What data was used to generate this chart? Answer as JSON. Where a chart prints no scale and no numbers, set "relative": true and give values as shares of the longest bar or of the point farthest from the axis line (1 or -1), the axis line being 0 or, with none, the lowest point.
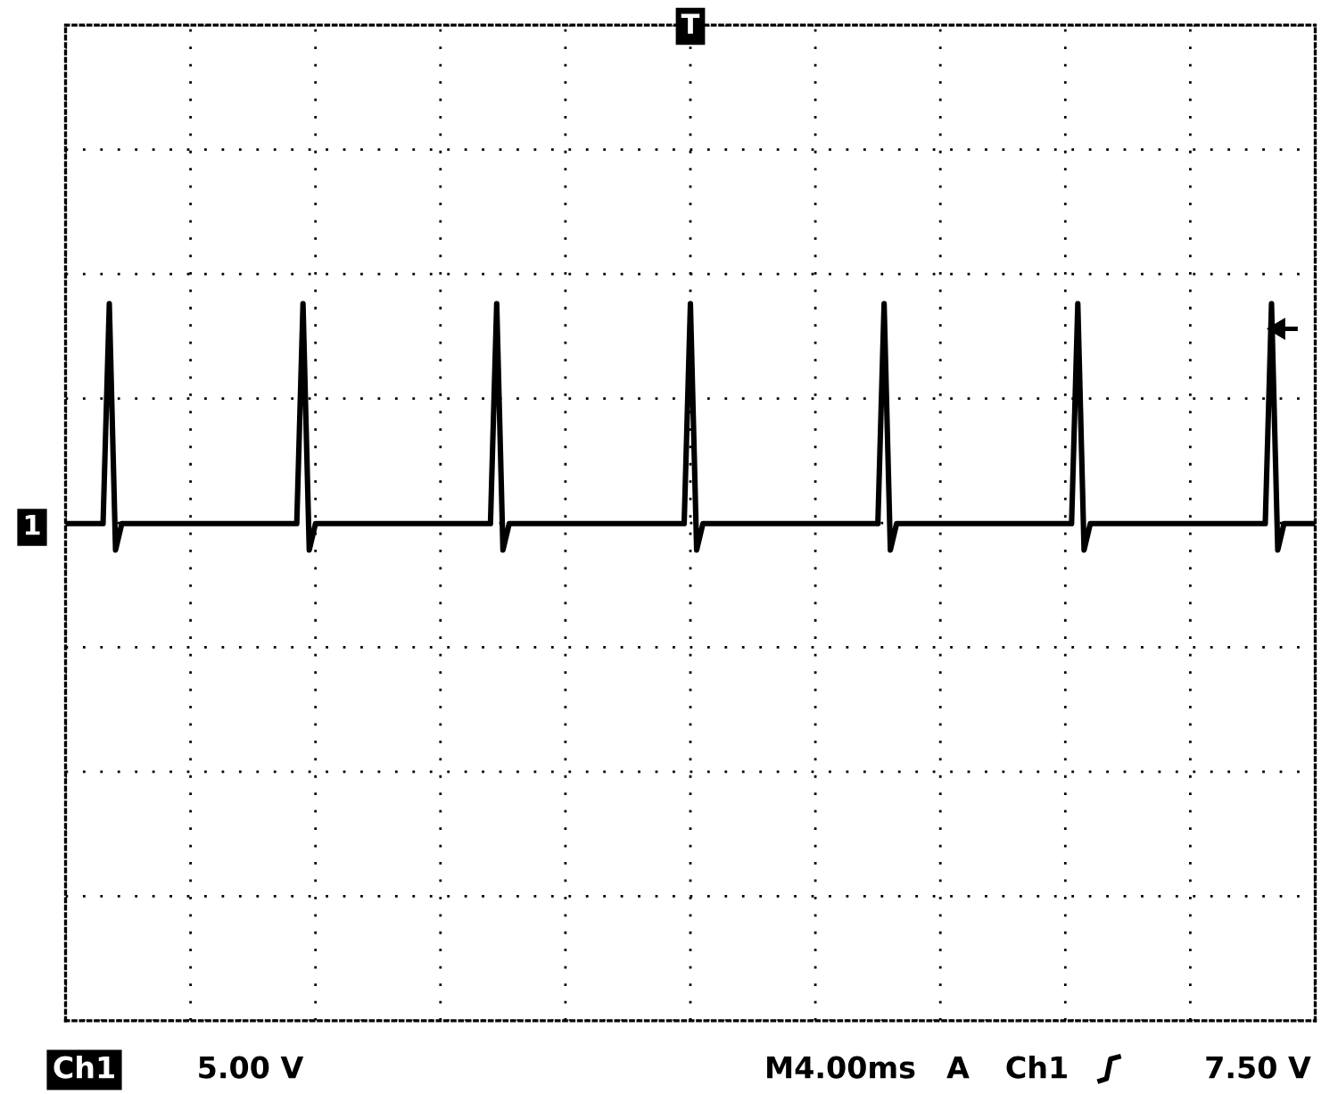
{
  "chart_data": {
    "type": "line",
    "relative": true,
    "categories": [
      null,
      null,
      null,
      null,
      null,
      null,
      null,
      null,
      null,
      null,
      null,
      null,
      null,
      null,
      null,
      null,
      null,
      null,
      null,
      null,
      null,
      null,
      null,
      null,
      null,
      null,
      null,
      null,
      null,
      null,
      null,
      null,
      null,
      null,
      null,
      null,
      null,
      null,
      null,
      null,
      null,
      null,
      null,
      null,
      null,
      null,
      null,
      null,
      null,
      null,
      null,
      null,
      null,
      null,
      null,
      null,
      null,
      null,
      null,
      null,
      null,
      null,
      null,
      null,
      null,
      null,
      null,
      null,
      null,
      null,
      null,
      null,
      null,
      null,
      null,
      null,
      null,
      null,
      null,
      null,
      null,
      null,
      null,
      null,
      null,
      null,
      null,
      null,
      null,
      null,
      null,
      null,
      null,
      null,
      null,
      null,
      null,
      null,
      null,
      null,
      null,
      null,
      null,
      null,
      null,
      null,
      null,
      null,
      null,
      null,
      null,
      null,
      null,
      null,
      null,
      null,
      null,
      null,
      null,
      null,
      null,
      null,
      null,
      null,
      null,
      null,
      null,
      null,
      null,
      null,
      null,
      null,
      null,
      null,
      null,
      null,
      null,
      null,
      null,
      null,
      null,
      null,
      null,
      null,
      null,
      null,
      null,
      null,
      null,
      null,
      null,
      null,
      null,
      null,
      null,
      null,
      null,
      null,
      null,
      null,
      null,
      null,
      null,
      null,
      null,
      null,
      null,
      null,
      null,
      null,
      null,
      null,
      null,
      null,
      null,
      null,
      null,
      null,
      null,
      null,
      null,
      null,
      null,
      null,
      null,
      null,
      null,
      null,
      null,
      null,
      null,
      null,
      null,
      null,
      null,
      null,
      null,
      null,
      null,
      null,
      null
    ],
    "series": [
      {
        "color": "#000000",
        "values": [
          0,
          0,
          0,
          0,
          0,
          0,
          0,
          1,
          -0.12,
          0,
          0,
          0,
          0,
          0,
          0,
          0,
          0,
          0,
          0,
          0,
          0,
          0,
          0,
          0,
          0,
          0,
          0,
          0,
          0,
          0,
          0,
          0,
          0,
          0,
          0,
          0,
          0,
          0,
          1,
          -0.12,
          0,
          0,
          0,
          0,
          0,
          0,
          0,
          0,
          0,
          0,
          0,
          0,
          0,
          0,
          0,
          0,
          0,
          0,
          0,
          0,
          0,
          0,
          0,
          0,
          0,
          0,
          0,
          0,
          0,
          1,
          -0.12,
          0,
          0,
          0,
          0,
          0,
          0,
          0,
          0,
          0,
          0,
          0,
          0,
          0,
          0,
          0,
          0,
          0,
          0,
          0,
          0,
          0,
          0,
          0,
          0,
          0,
          0,
          0,
          0,
          0,
          1,
          -0.12,
          0,
          0,
          0,
          0,
          0,
          0,
          0,
          0,
          0,
          0,
          0,
          0,
          0,
          0,
          0,
          0,
          0,
          0,
          0,
          0,
          0,
          0,
          0,
          0,
          0,
          0,
          0,
          0,
          0,
          1,
          -0.12,
          0,
          0,
          0,
          0,
          0,
          0,
          0,
          0,
          0,
          0,
          0,
          0,
          0,
          0,
          0,
          0,
          0,
          0,
          0,
          0,
          0,
          0,
          0,
          0,
          0,
          0,
          0,
          0,
          0,
          1,
          -0.12,
          0,
          0,
          0,
          0,
          0,
          0,
          0,
          0,
          0,
          0,
          0,
          0,
          0,
          0,
          0,
          0,
          0,
          0,
          0,
          0,
          0,
          0,
          0,
          0,
          0,
          0,
          0,
          0,
          0,
          1,
          -0.12,
          0,
          0,
          0,
          0,
          0,
          0
        ]
      }
    ],
    "tick_labels": false,
    "grid": true,
    "marker": "none",
    "line_style": "solid",
    "annotations": [
      "1",
      "T",
      "Ch1",
      "5.00 V",
      "M4.00ms",
      "A",
      "Ch1",
      "7.50 V"
    ]
  }
}
